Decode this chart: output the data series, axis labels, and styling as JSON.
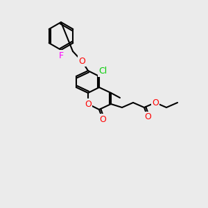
{
  "background_color": "#ebebeb",
  "bond_color": "#000000",
  "bond_width": 1.5,
  "atom_colors": {
    "O": "#ff0000",
    "Cl": "#00cc00",
    "F": "#ff00ff",
    "C": "#000000"
  },
  "font_size": 9
}
